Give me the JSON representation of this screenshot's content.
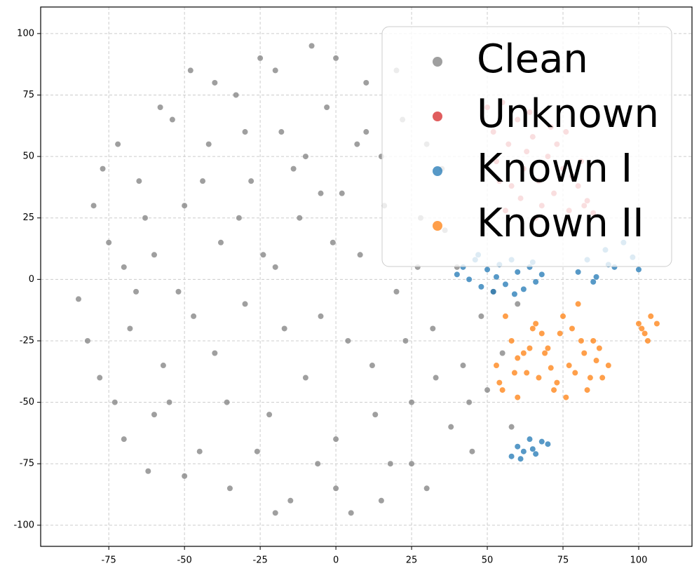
{
  "chart_data": {
    "type": "scatter",
    "xlim": [
      -97.5,
      117.6
    ],
    "ylim": [
      -108.6,
      110.8
    ],
    "xticks": [
      -75,
      -50,
      -25,
      0,
      25,
      50,
      75,
      100
    ],
    "yticks": [
      -100,
      -75,
      -50,
      -25,
      0,
      25,
      50,
      75,
      100
    ],
    "grid": true,
    "legend": "upper right",
    "series": [
      {
        "name": "Clean",
        "color": "#7f7f7f",
        "x": [
          -85,
          -80,
          -78,
          -75,
          -72,
          -70,
          -68,
          -65,
          -62,
          -60,
          -58,
          -55,
          -52,
          -50,
          -48,
          -45,
          -42,
          -40,
          -38,
          -35,
          -33,
          -30,
          -28,
          -25,
          -22,
          -20,
          -18,
          -15,
          -12,
          -10,
          -8,
          -5,
          -3,
          0,
          2,
          5,
          8,
          10,
          12,
          15,
          18,
          20,
          22,
          25,
          28,
          30,
          32,
          35,
          38,
          40,
          42,
          45,
          48,
          50,
          55,
          58,
          60,
          -82,
          -77,
          -66,
          -63,
          -57,
          -47,
          -44,
          -36,
          -32,
          -26,
          -24,
          -17,
          -14,
          -6,
          -1,
          4,
          7,
          13,
          16,
          23,
          27,
          33,
          36,
          44,
          52,
          -54,
          -40,
          -30,
          -20,
          -10,
          0,
          10,
          20,
          -60,
          -50,
          -20,
          0,
          15,
          25,
          -70,
          -73,
          -5,
          30
        ],
        "values": [
          -8,
          30,
          -40,
          15,
          55,
          -65,
          -20,
          40,
          -78,
          10,
          70,
          -50,
          -5,
          30,
          85,
          -70,
          55,
          -30,
          15,
          -85,
          75,
          -10,
          40,
          90,
          -55,
          5,
          60,
          -90,
          25,
          -40,
          95,
          -15,
          70,
          -65,
          35,
          -95,
          10,
          80,
          -35,
          50,
          -75,
          -5,
          65,
          -50,
          25,
          -85,
          -20,
          45,
          -60,
          5,
          -35,
          -70,
          -15,
          -45,
          -30,
          -60,
          -10,
          -25,
          45,
          -5,
          25,
          -35,
          -15,
          40,
          -50,
          25,
          -70,
          10,
          -20,
          45,
          -75,
          15,
          -25,
          55,
          -55,
          30,
          -25,
          5,
          -40,
          20,
          -50,
          -5,
          65,
          80,
          60,
          85,
          50,
          90,
          60,
          85,
          -55,
          -80,
          -95,
          -85,
          -90,
          -75,
          5,
          -50,
          35,
          55
        ]
      },
      {
        "name": "Unknown",
        "color": "#d62728",
        "x": [
          50,
          52,
          55,
          57,
          60,
          62,
          65,
          67,
          70,
          72,
          75,
          77,
          80,
          82,
          85,
          53,
          58,
          63,
          68,
          73,
          78,
          83,
          56,
          61,
          66,
          71,
          76,
          81,
          54,
          64
        ],
        "values": [
          70,
          60,
          72,
          55,
          65,
          45,
          58,
          40,
          50,
          35,
          45,
          28,
          38,
          30,
          27,
          48,
          38,
          52,
          30,
          55,
          42,
          32,
          28,
          33,
          25,
          62,
          60,
          48,
          40,
          68
        ]
      },
      {
        "name": "Known I",
        "color": "#1f77b4",
        "x": [
          40,
          42,
          44,
          46,
          48,
          50,
          52,
          54,
          56,
          58,
          60,
          62,
          64,
          66,
          68,
          47,
          53,
          59,
          65,
          80,
          83,
          86,
          89,
          92,
          95,
          98,
          100,
          85,
          90,
          58,
          60,
          62,
          64,
          66,
          68,
          70,
          61,
          65
        ],
        "values": [
          2,
          5,
          0,
          8,
          -3,
          4,
          -5,
          6,
          -2,
          8,
          3,
          -4,
          5,
          -1,
          2,
          10,
          1,
          -6,
          7,
          3,
          8,
          1,
          12,
          5,
          15,
          9,
          4,
          -1,
          6,
          -72,
          -68,
          -70,
          -65,
          -71,
          -66,
          -67,
          -73,
          -69
        ]
      },
      {
        "name": "Known II",
        "color": "#ff7f0e",
        "x": [
          53,
          55,
          58,
          60,
          62,
          65,
          67,
          70,
          72,
          75,
          77,
          80,
          82,
          85,
          88,
          90,
          56,
          63,
          68,
          73,
          78,
          83,
          87,
          60,
          66,
          71,
          76,
          81,
          86,
          54,
          59,
          64,
          69,
          74,
          79,
          84,
          100,
          102,
          104,
          106,
          103,
          101
        ],
        "values": [
          -35,
          -45,
          -25,
          -48,
          -30,
          -20,
          -40,
          -28,
          -45,
          -15,
          -35,
          -10,
          -30,
          -25,
          -40,
          -35,
          -15,
          -38,
          -22,
          -42,
          -20,
          -45,
          -28,
          -32,
          -18,
          -36,
          -48,
          -25,
          -33,
          -42,
          -38,
          -28,
          -30,
          -22,
          -38,
          -40,
          -18,
          -22,
          -15,
          -18,
          -25,
          -20
        ]
      }
    ]
  }
}
